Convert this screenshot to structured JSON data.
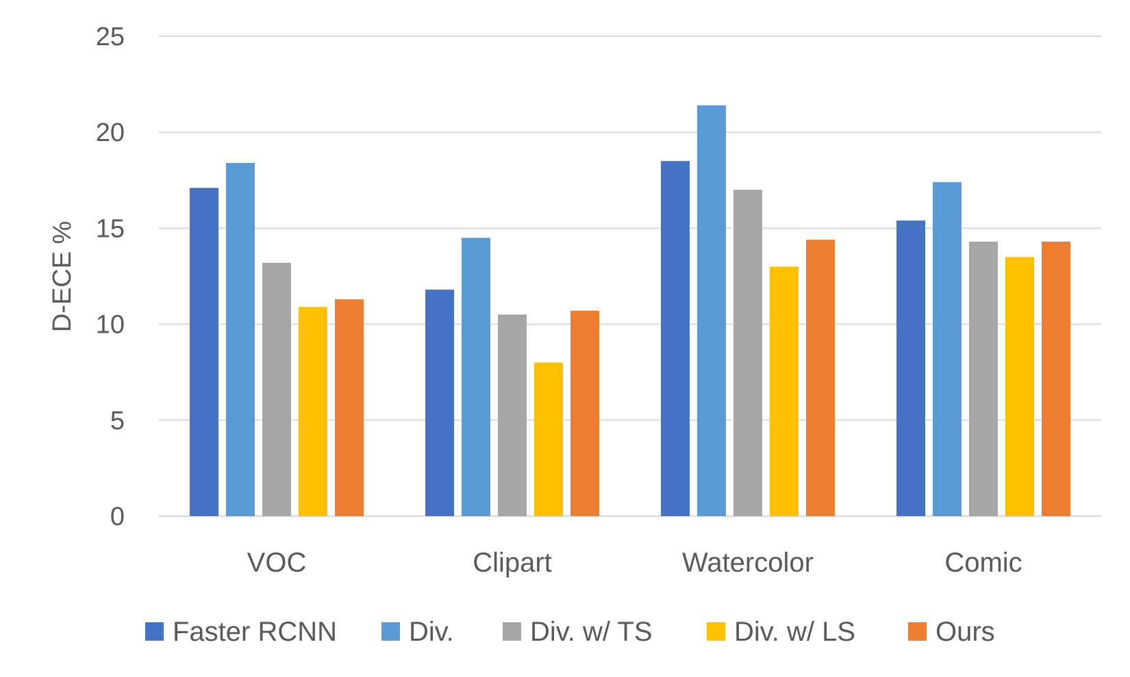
{
  "chart_data": {
    "type": "bar",
    "title": "",
    "xlabel": "",
    "ylabel": "D-ECE %",
    "ylim": [
      0,
      25
    ],
    "yticks": [
      0,
      5,
      10,
      15,
      20,
      25
    ],
    "grid": true,
    "legend_position": "bottom",
    "categories": [
      "VOC",
      "Clipart",
      "Watercolor",
      "Comic"
    ],
    "series": [
      {
        "name": "Faster RCNN",
        "color": "#4472c4",
        "values": [
          17.1,
          11.8,
          18.5,
          15.4
        ]
      },
      {
        "name": "Div.",
        "color": "#5b9bd5",
        "values": [
          18.4,
          14.5,
          21.4,
          17.4
        ]
      },
      {
        "name": "Div. w/ TS",
        "color": "#a5a5a5",
        "values": [
          13.2,
          10.5,
          17.0,
          14.3
        ]
      },
      {
        "name": "Div. w/ LS",
        "color": "#ffc000",
        "values": [
          10.9,
          8.0,
          13.0,
          13.5
        ]
      },
      {
        "name": "Ours",
        "color": "#ed7d31",
        "values": [
          11.3,
          10.7,
          14.4,
          14.3
        ]
      }
    ]
  }
}
